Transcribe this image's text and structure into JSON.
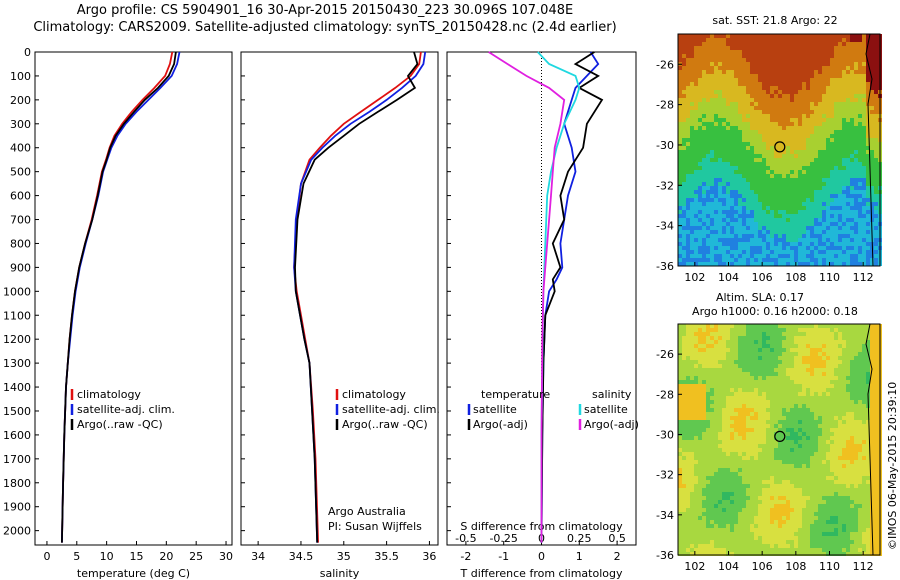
{
  "title": {
    "line1": "Argo profile: CS 5904901_16 30-Apr-2015 20150430_223 30.096S 107.048E",
    "line2": "Climatology: CARS2009. Satellite-adjusted climatology: synTS_20150428.nc (2.4d earlier)"
  },
  "colors": {
    "climatology": "#e01010",
    "satellite": "#1020e0",
    "argo": "#000000",
    "sal_satellite": "#20d8e0",
    "sal_argo": "#e020e0"
  },
  "chart_data": [
    {
      "type": "line",
      "panel": "temperature",
      "xlabel": "temperature (deg C)",
      "ylabel": "",
      "xlim": [
        -2,
        31
      ],
      "ylim": [
        0,
        2060
      ],
      "y_reversed": true,
      "xticks": [
        0,
        5,
        10,
        15,
        20,
        25,
        30
      ],
      "yticks": [
        0,
        100,
        200,
        300,
        400,
        500,
        600,
        700,
        800,
        900,
        1000,
        1100,
        1200,
        1300,
        1400,
        1500,
        1600,
        1700,
        1800,
        1900,
        2000
      ],
      "legend": [
        "climatology",
        "satellite-adj. clim.",
        "Argo(..raw -QC)"
      ],
      "legend_position": "lower-right",
      "series": [
        {
          "name": "climatology",
          "x": [
            21,
            20.6,
            19.8,
            18,
            16,
            14.2,
            12.6,
            11.3,
            10.5,
            9.9,
            9.2,
            8.4,
            7.5,
            6.4,
            5.4,
            4.7,
            4.2,
            3.8,
            3.5,
            3.2,
            2.9,
            2.7,
            2.5
          ],
          "y": [
            0,
            50,
            100,
            150,
            200,
            250,
            300,
            350,
            400,
            450,
            500,
            600,
            700,
            800,
            900,
            1000,
            1100,
            1200,
            1300,
            1400,
            1600,
            1800,
            2050
          ]
        },
        {
          "name": "satellite-adj. clim.",
          "x": [
            22.2,
            21.8,
            20.9,
            19,
            17,
            15,
            13.2,
            11.8,
            10.8,
            10.1,
            9.4,
            8.6,
            7.6,
            6.5,
            5.5,
            4.8,
            4.3,
            3.9,
            3.5,
            3.2,
            2.9,
            2.7,
            2.5
          ],
          "y": [
            0,
            50,
            100,
            150,
            200,
            250,
            300,
            350,
            400,
            450,
            500,
            600,
            700,
            800,
            900,
            1000,
            1100,
            1200,
            1300,
            1400,
            1600,
            1800,
            2050
          ]
        },
        {
          "name": "Argo(..raw -QC)",
          "x": [
            21.6,
            21.3,
            20.4,
            18.6,
            16.4,
            14.6,
            12.9,
            11.5,
            10.6,
            10.0,
            9.3,
            8.5,
            7.6,
            6.4,
            5.4,
            4.7,
            4.2,
            3.8,
            3.5,
            3.2,
            2.9,
            2.7,
            2.5
          ],
          "y": [
            0,
            50,
            100,
            150,
            200,
            250,
            300,
            350,
            400,
            450,
            500,
            600,
            700,
            800,
            900,
            1000,
            1100,
            1200,
            1300,
            1400,
            1600,
            1800,
            2050
          ]
        }
      ]
    },
    {
      "type": "line",
      "panel": "salinity",
      "xlabel": "salinity",
      "xlim": [
        33.8,
        36.1
      ],
      "ylim": [
        0,
        2060
      ],
      "y_reversed": true,
      "xticks": [
        34,
        34.5,
        35,
        35.5,
        36
      ],
      "xticklabels": [
        "34",
        "34.5",
        "35",
        "35.5",
        "36"
      ],
      "legend": [
        "climatology",
        "satellite-adj. clim.",
        "Argo(..raw -QC)"
      ],
      "legend_position": "middle-right",
      "annotation": [
        "Argo Australia",
        "PI: Susan Wijffels"
      ],
      "series": [
        {
          "name": "climatology",
          "x": [
            35.9,
            35.88,
            35.78,
            35.6,
            35.4,
            35.2,
            35.0,
            34.85,
            34.72,
            34.6,
            34.5,
            34.45,
            34.42,
            34.45,
            34.5,
            34.55,
            34.6,
            34.64,
            34.67,
            34.7
          ],
          "y": [
            0,
            50,
            100,
            150,
            200,
            250,
            300,
            350,
            400,
            450,
            550,
            700,
            900,
            1000,
            1100,
            1200,
            1300,
            1500,
            1700,
            2050
          ]
        },
        {
          "name": "satellite-adj. clim.",
          "x": [
            35.95,
            35.93,
            35.84,
            35.68,
            35.5,
            35.3,
            35.08,
            34.9,
            34.75,
            34.62,
            34.5,
            34.44,
            34.42,
            34.44,
            34.49,
            34.54,
            34.6,
            34.63,
            34.66,
            34.69
          ],
          "y": [
            0,
            50,
            100,
            150,
            200,
            250,
            300,
            350,
            400,
            450,
            550,
            700,
            900,
            1000,
            1100,
            1200,
            1300,
            1500,
            1700,
            2050
          ]
        },
        {
          "name": "Argo(..raw -QC)",
          "x": [
            35.82,
            35.86,
            35.75,
            35.83,
            35.62,
            35.4,
            35.18,
            35.0,
            34.82,
            34.66,
            34.53,
            34.46,
            34.43,
            34.44,
            34.49,
            34.54,
            34.6,
            34.63,
            34.66,
            34.69
          ],
          "y": [
            0,
            50,
            100,
            150,
            200,
            250,
            300,
            350,
            400,
            450,
            550,
            700,
            900,
            1000,
            1100,
            1200,
            1300,
            1500,
            1700,
            2050
          ]
        }
      ]
    },
    {
      "type": "line",
      "panel": "difference",
      "xlabel": "T difference from climatology",
      "top_xlabel": "S difference from climatology",
      "xlim": [
        -2.5,
        2.5
      ],
      "ylim": [
        0,
        2060
      ],
      "y_reversed": true,
      "xticks": [
        -2,
        -1,
        0,
        1,
        2
      ],
      "top_xticklabels": [
        "-0.5",
        "-0.25",
        "0",
        "0.25",
        "0.5"
      ],
      "legend": [
        "temperature",
        "satellite",
        "Argo(-adj)",
        "salinity",
        "satellite",
        "Argo(-adj)"
      ],
      "legend_position": "lower-center",
      "series": [
        {
          "name": "satellite",
          "group": "temperature",
          "x": [
            1.3,
            1.5,
            1.2,
            0.9,
            0.8,
            0.6,
            0.8,
            0.9,
            0.7,
            0.6,
            0.5,
            0.55,
            0.4,
            0.2,
            0.1,
            0.05,
            0.02,
            0.0
          ],
          "y": [
            0,
            50,
            100,
            150,
            200,
            300,
            400,
            500,
            600,
            700,
            800,
            900,
            950,
            1000,
            1100,
            1300,
            1600,
            2050
          ]
        },
        {
          "name": "Argo(-adj)",
          "group": "temperature",
          "x": [
            1.4,
            0.9,
            1.5,
            1.0,
            1.6,
            1.2,
            1.1,
            0.7,
            0.5,
            0.6,
            0.3,
            0.5,
            0.3,
            0.35,
            0.1,
            0.05,
            0.02,
            0.0
          ],
          "y": [
            0,
            50,
            100,
            150,
            200,
            300,
            400,
            500,
            600,
            700,
            800,
            900,
            950,
            1000,
            1100,
            1300,
            1600,
            2050
          ]
        },
        {
          "name": "satellite",
          "group": "salinity",
          "x": [
            -0.1,
            0.2,
            0.9,
            1.0,
            0.9,
            0.6,
            0.4,
            0.25,
            0.15,
            0.1,
            0.05,
            0.03,
            0.0,
            0.0
          ],
          "y": [
            0,
            50,
            100,
            150,
            200,
            300,
            400,
            500,
            600,
            800,
            1000,
            1200,
            1600,
            2050
          ]
        },
        {
          "name": "Argo(-adj)",
          "group": "salinity",
          "x": [
            -1.4,
            -0.9,
            -0.4,
            0.2,
            0.6,
            0.5,
            0.35,
            0.3,
            0.25,
            0.15,
            0.05,
            0.02,
            0.0,
            0.0
          ],
          "y": [
            0,
            50,
            100,
            150,
            200,
            300,
            400,
            500,
            600,
            800,
            1000,
            1200,
            1600,
            2050
          ]
        }
      ]
    },
    {
      "type": "heatmap",
      "panel": "sst-map",
      "title": "sat. SST: 21.8  Argo: 22",
      "xlim": [
        101,
        113
      ],
      "ylim": [
        -36,
        -24.5
      ],
      "xticks": [
        102,
        104,
        106,
        108,
        110,
        112
      ],
      "yticks": [
        -36,
        -34,
        -32,
        -30,
        -28,
        -26
      ],
      "marker": {
        "lon": 107.048,
        "lat": -30.096
      }
    },
    {
      "type": "heatmap",
      "panel": "sla-map",
      "title": "Altim. SLA: 0.17",
      "subtitle": "Argo h1000: 0.16 h2000: 0.18",
      "xlim": [
        101,
        113
      ],
      "ylim": [
        -36,
        -24.5
      ],
      "xticks": [
        102,
        104,
        106,
        108,
        110,
        112
      ],
      "yticks": [
        -36,
        -34,
        -32,
        -30,
        -28,
        -26
      ],
      "marker": {
        "lon": 107.048,
        "lat": -30.096
      }
    }
  ],
  "footer": {
    "credit": "©IMOS 06-May-2015 20:39:10"
  }
}
